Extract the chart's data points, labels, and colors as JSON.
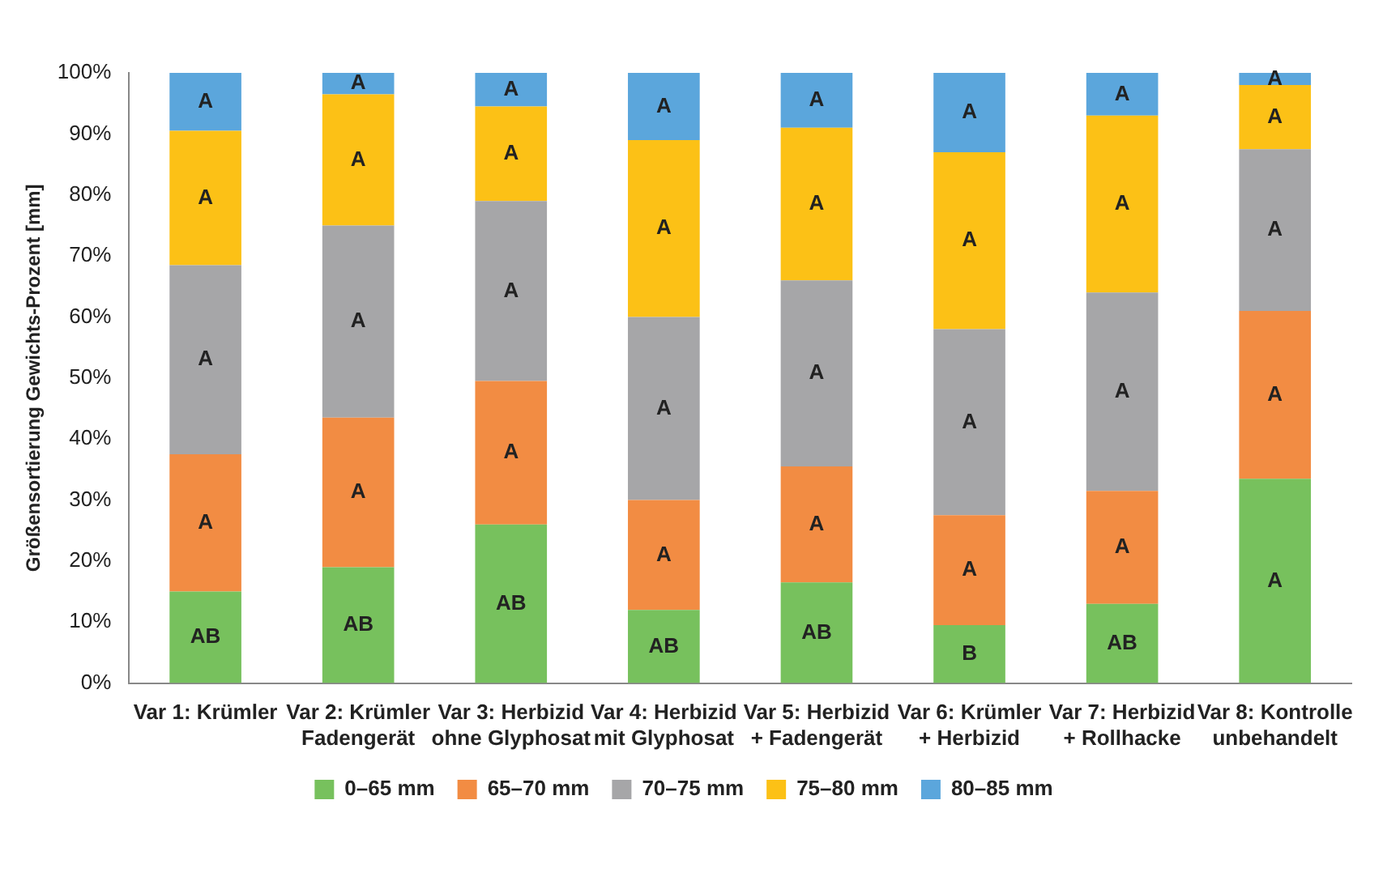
{
  "chart_data": {
    "type": "bar",
    "stacked": true,
    "ylabel": "Größensortierung Gewichts-Prozent [mm]",
    "categories": [
      "Var 1: Krümler",
      "Var 2: Krümler\nFadengerät",
      "Var 3: Herbizid\nohne Glyphosat",
      "Var 4: Herbizid\nmit Glyphosat",
      "Var 5: Herbizid\n+ Fadengerät",
      "Var 6: Krümler\n+ Herbizid",
      "Var 7: Herbizid\n+ Rollhacke",
      "Var 8: Kontrolle\nunbehandelt"
    ],
    "series": [
      {
        "name": "0–65 mm",
        "color": "#77c15d",
        "values": [
          15,
          19,
          26,
          12,
          16.5,
          9.5,
          13,
          33.5
        ],
        "value_labels": [
          "AB",
          "AB",
          "AB",
          "AB",
          "AB",
          "B",
          "AB",
          "A"
        ]
      },
      {
        "name": "65–70 mm",
        "color": "#f28c43",
        "values": [
          22.5,
          24.5,
          23.5,
          18,
          19,
          18,
          18.5,
          27.5
        ],
        "value_labels": [
          "A",
          "A",
          "A",
          "A",
          "A",
          "A",
          "A",
          "A"
        ]
      },
      {
        "name": "70–75 mm",
        "color": "#a6a6a8",
        "values": [
          31,
          31.5,
          29.5,
          30,
          30.5,
          30.5,
          32.5,
          26.5
        ],
        "value_labels": [
          "A",
          "A",
          "A",
          "A",
          "A",
          "A",
          "A",
          "A"
        ]
      },
      {
        "name": "75–80 mm",
        "color": "#fcc116",
        "values": [
          22,
          21.5,
          15.5,
          29,
          25,
          29,
          29,
          10.5
        ],
        "value_labels": [
          "A",
          "A",
          "A",
          "A",
          "A",
          "A",
          "A",
          "A"
        ]
      },
      {
        "name": "80–85 mm",
        "color": "#5ba6dc",
        "values": [
          9.5,
          3.5,
          5.5,
          11,
          9,
          13,
          7,
          2
        ],
        "value_labels": [
          "A",
          "A",
          "A",
          "A",
          "A",
          "A",
          "A",
          "A"
        ]
      }
    ],
    "ylim": [
      0,
      100
    ],
    "yticks": [
      {
        "value": 0,
        "label": "0%"
      },
      {
        "value": 10,
        "label": "10%"
      },
      {
        "value": 20,
        "label": "20%"
      },
      {
        "value": 30,
        "label": "30%"
      },
      {
        "value": 40,
        "label": "40%"
      },
      {
        "value": 50,
        "label": "50%"
      },
      {
        "value": 60,
        "label": "60%"
      },
      {
        "value": 70,
        "label": "70%"
      },
      {
        "value": 80,
        "label": "80%"
      },
      {
        "value": 90,
        "label": "90%"
      },
      {
        "value": 100,
        "label": "100%"
      }
    ],
    "grid": false,
    "legend": "bottom"
  }
}
